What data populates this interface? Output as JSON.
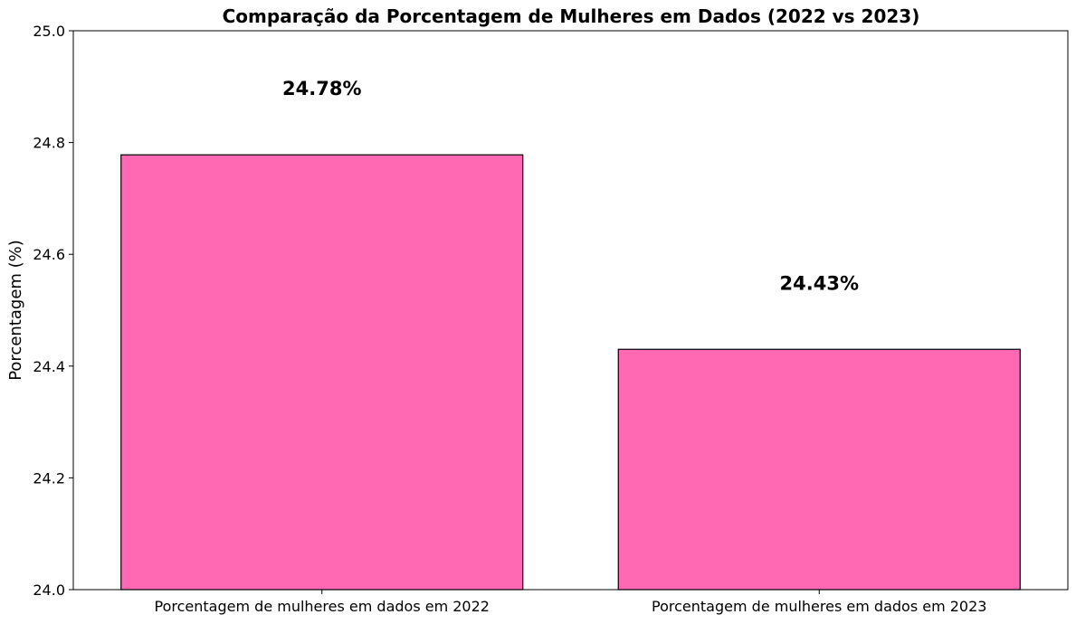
{
  "chart_data": {
    "type": "bar",
    "title": "Comparação da Porcentagem de Mulheres em Dados (2022 vs 2023)",
    "ylabel": "Porcentagem (%)",
    "xlabel": "",
    "categories": [
      "Porcentagem de mulheres em dados em 2022",
      "Porcentagem de mulheres em dados em 2023"
    ],
    "values": [
      24.778,
      24.43
    ],
    "data_labels": [
      "24.78%",
      "24.43%"
    ],
    "ylim": [
      24.0,
      25.0
    ],
    "yticks": [
      24.0,
      24.2,
      24.4,
      24.6,
      24.8,
      25.0
    ],
    "ytick_labels": [
      "24.0",
      "24.2",
      "24.4",
      "24.6",
      "24.8",
      "25.0"
    ],
    "bar_color": "#ff69b4",
    "edge_color": "#000000",
    "grid": false,
    "legend": "none"
  }
}
